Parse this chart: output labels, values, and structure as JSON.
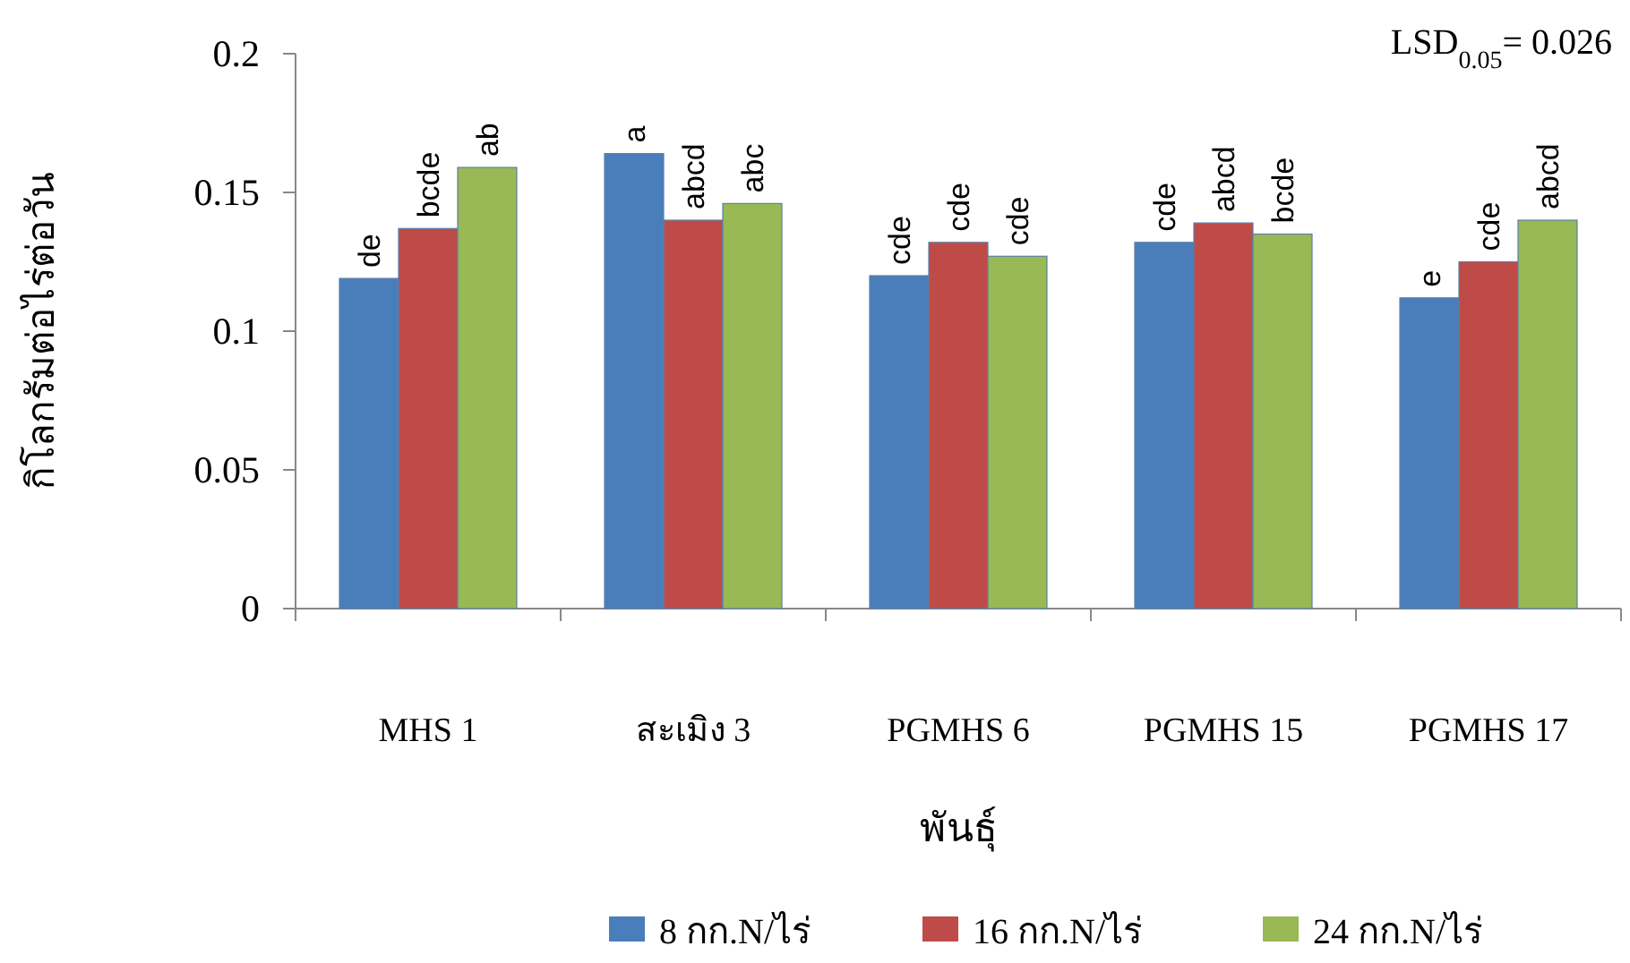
{
  "chart_data": {
    "type": "bar",
    "xlabel": "พันธุ์",
    "ylabel": "กิโลกรัมต่อไร่ต่อวัน",
    "categories": [
      "MHS 1",
      "สะเมิง 3",
      "PGMHS 6",
      "PGMHS 15",
      "PGMHS 17"
    ],
    "series": [
      {
        "name": "8 กก.N/ไร่",
        "color": "#4a7ebb",
        "values": [
          0.119,
          0.164,
          0.12,
          0.132,
          0.112
        ],
        "value_labels": [
          "de",
          "a",
          "cde",
          "cde",
          "e"
        ]
      },
      {
        "name": "16 กก.N/ไร่",
        "color": "#be4b48",
        "values": [
          0.137,
          0.14,
          0.132,
          0.139,
          0.125
        ],
        "value_labels": [
          "bcde",
          "abcd",
          "cde",
          "abcd",
          "cde"
        ]
      },
      {
        "name": "24 กก.N/ไร่",
        "color": "#98b954",
        "values": [
          0.159,
          0.146,
          0.127,
          0.135,
          0.14
        ],
        "value_labels": [
          "ab",
          "abc",
          "cde",
          "bcde",
          "abcd"
        ]
      }
    ],
    "ylim": [
      0,
      0.2
    ],
    "yticks": [
      0,
      0.05,
      0.1,
      0.15,
      0.2
    ],
    "grid": false,
    "legend": "bottom",
    "annotations": [
      "LSD$_{0.05}$= 0.026"
    ]
  }
}
